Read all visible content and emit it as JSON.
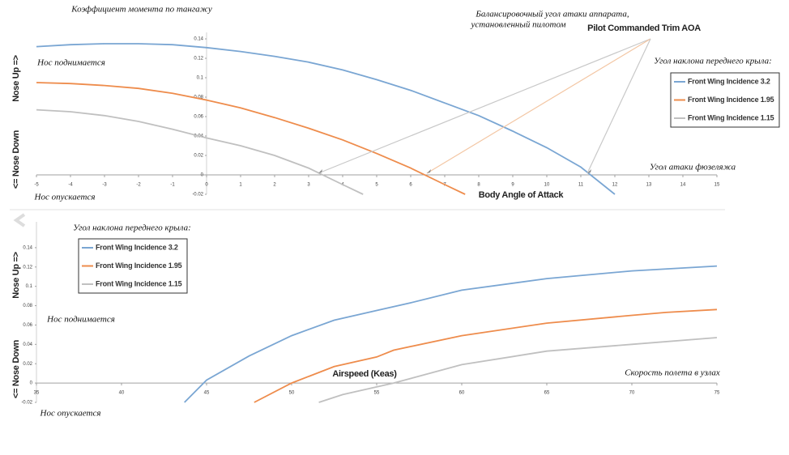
{
  "chart_data": [
    {
      "type": "line",
      "ylabel": "Коэффициент момента по тангажу",
      "y_up_label": "Nose Up =>",
      "y_down_label": "<= Nose Down",
      "xlabel": "Body Angle of Attack",
      "xlabel_ru": "Угол атаки фюзеляжа",
      "up_note": "Нос поднимается",
      "down_note": "Нос опускается",
      "legend_title": "Угол наклона переднего крыла:",
      "annotations": [
        "Балансировочный угол атаки аппарата,",
        "установленный пилотом",
        "Pilot Commanded Trim AOA"
      ],
      "legend": "upper right",
      "xlim": [
        -5,
        15
      ],
      "xticks": [
        -5,
        -4,
        -3,
        -2,
        -1,
        0,
        1,
        2,
        3,
        4,
        5,
        6,
        7,
        8,
        9,
        10,
        11,
        12,
        13,
        14,
        15
      ],
      "ylim": [
        -0.02,
        0.14
      ],
      "yticks": [
        -0.02,
        0,
        0.02,
        0.04,
        0.06,
        0.08,
        0.1,
        0.12,
        0.14
      ],
      "series": [
        {
          "name": "Front Wing Incidence 3.2",
          "color": "#7aa6d3",
          "x": [
            -5,
            -4,
            -3,
            -2,
            -1,
            0,
            1,
            2,
            3,
            4,
            5,
            6,
            7,
            8,
            9,
            10,
            11,
            12
          ],
          "values": [
            0.132,
            0.134,
            0.135,
            0.135,
            0.134,
            0.131,
            0.127,
            0.122,
            0.116,
            0.108,
            0.098,
            0.087,
            0.074,
            0.061,
            0.045,
            0.028,
            0.008,
            -0.02
          ]
        },
        {
          "name": "Front Wing Incidence 1.95",
          "color": "#ee8c4c",
          "x": [
            -5,
            -4,
            -3,
            -2,
            -1,
            0,
            1,
            2,
            3,
            4,
            5,
            6,
            7,
            7.6
          ],
          "values": [
            0.095,
            0.094,
            0.092,
            0.089,
            0.084,
            0.077,
            0.069,
            0.059,
            0.048,
            0.036,
            0.022,
            0.007,
            -0.01,
            -0.02
          ]
        },
        {
          "name": "Front Wing Incidence 1.15",
          "color": "#c0c0c0",
          "x": [
            -5,
            -4,
            -3,
            -2,
            -1,
            0,
            1,
            2,
            3,
            4,
            4.6
          ],
          "values": [
            0.067,
            0.065,
            0.061,
            0.055,
            0.047,
            0.038,
            0.03,
            0.02,
            0.007,
            -0.01,
            -0.02
          ]
        }
      ]
    },
    {
      "type": "line",
      "y_up_label": "Nose Up =>",
      "y_down_label": "<= Nose Down",
      "xlabel": "Airspeed (Keas)",
      "xlabel_ru": "Скорость полета в узлах",
      "up_note": "Нос поднимается",
      "down_note": "Нос опускается",
      "legend_title": "Угол наклона переднего крыла:",
      "legend": "upper left",
      "xlim": [
        35,
        75
      ],
      "xticks": [
        35,
        40,
        45,
        50,
        55,
        60,
        65,
        70,
        75
      ],
      "ylim": [
        -0.02,
        0.16
      ],
      "yticks": [
        -0.02,
        0,
        0.02,
        0.04,
        0.06,
        0.08,
        0.1,
        0.12,
        0.14
      ],
      "series": [
        {
          "name": "Front Wing Incidence 3.2",
          "color": "#7aa6d3",
          "x": [
            43.7,
            45,
            47.5,
            50,
            52.5,
            55,
            57,
            60,
            65,
            70,
            75
          ],
          "values": [
            -0.02,
            0.003,
            0.028,
            0.049,
            0.065,
            0.075,
            0.083,
            0.096,
            0.108,
            0.116,
            0.121
          ]
        },
        {
          "name": "Front Wing Incidence 1.95",
          "color": "#ee8c4c",
          "x": [
            47.8,
            50,
            52.5,
            55,
            56,
            60,
            65,
            70,
            72,
            75
          ],
          "values": [
            -0.02,
            0,
            0.017,
            0.027,
            0.034,
            0.049,
            0.062,
            0.07,
            0.073,
            0.076
          ]
        },
        {
          "name": "Front Wing Incidence 1.15",
          "color": "#c0c0c0",
          "x": [
            51.6,
            53,
            55,
            56,
            60,
            65,
            70,
            75
          ],
          "values": [
            -0.02,
            -0.012,
            -0.004,
            0,
            0.019,
            0.033,
            0.04,
            0.047
          ]
        }
      ]
    }
  ]
}
